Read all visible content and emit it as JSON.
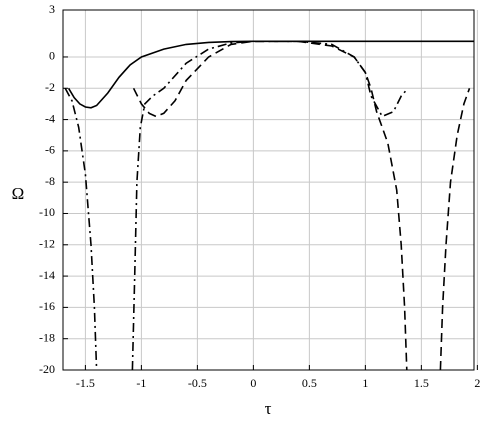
{
  "chart_data": {
    "type": "line",
    "xlabel": "τ",
    "ylabel": "Ω",
    "xlim": [
      -1.7,
      1.97
    ],
    "ylim": [
      -20,
      3
    ],
    "xticks": [
      -1.5,
      -1,
      -0.5,
      0,
      0.5,
      1,
      1.5,
      2
    ],
    "yticks": [
      3,
      0,
      -2,
      -4,
      -6,
      -8,
      -10,
      -12,
      -14,
      -16,
      -18,
      -20
    ],
    "grid": true,
    "series": [
      {
        "color": "#000000",
        "dash": "solid",
        "x": [
          -1.65,
          -1.6,
          -1.55,
          -1.5,
          -1.45,
          -1.4,
          -1.3,
          -1.2,
          -1.1,
          -1.0,
          -0.8,
          -0.6,
          -0.4,
          -0.2,
          0,
          0.5,
          1,
          1.5,
          1.97
        ],
        "values": [
          -2,
          -2.6,
          -3.0,
          -3.2,
          -3.25,
          -3.1,
          -2.3,
          -1.3,
          -0.5,
          0.0,
          0.5,
          0.8,
          0.93,
          0.98,
          1,
          1,
          1,
          1,
          1
        ]
      },
      {
        "color": "#000000",
        "dash": "dashed",
        "x": [
          -1.07,
          -1.0,
          -0.93,
          -0.87,
          -0.8,
          -0.7,
          -0.6,
          -0.4,
          -0.2,
          0,
          0.4,
          0.7,
          0.9,
          1.0,
          1.05,
          1.1,
          1.2,
          1.28,
          1.32,
          1.35,
          1.37,
          null,
          1.67,
          1.69,
          1.72,
          1.76,
          1.82,
          1.88,
          1.93
        ],
        "values": [
          -2,
          -3.0,
          -3.6,
          -3.8,
          -3.6,
          -2.8,
          -1.5,
          0,
          0.8,
          1,
          1,
          0.7,
          0,
          -1,
          -2,
          -3.5,
          -5.5,
          -8.5,
          -12,
          -16,
          -20,
          null,
          -20,
          -16,
          -12,
          -8,
          -5,
          -3,
          -2
        ]
      },
      {
        "color": "#000000",
        "dash": "dashdot",
        "x": [
          -1.68,
          -1.62,
          -1.56,
          -1.5,
          -1.45,
          -1.42,
          -1.4,
          null,
          -1.08,
          -1.06,
          -1.04,
          -1.01,
          -0.97,
          -0.9,
          -0.8,
          -0.6,
          -0.4,
          -0.2,
          0,
          0.4,
          0.7,
          0.9,
          1.0,
          1.05,
          1.15,
          1.25,
          1.32,
          1.38
        ],
        "values": [
          -2,
          -2.8,
          -4.5,
          -7.5,
          -12,
          -16,
          -20,
          null,
          -20,
          -14,
          -8,
          -4.5,
          -3,
          -2.5,
          -2,
          -0.4,
          0.5,
          0.9,
          1,
          1,
          0.8,
          0,
          -1,
          -2.5,
          -3.8,
          -3.5,
          -2.5,
          -2
        ]
      }
    ]
  }
}
